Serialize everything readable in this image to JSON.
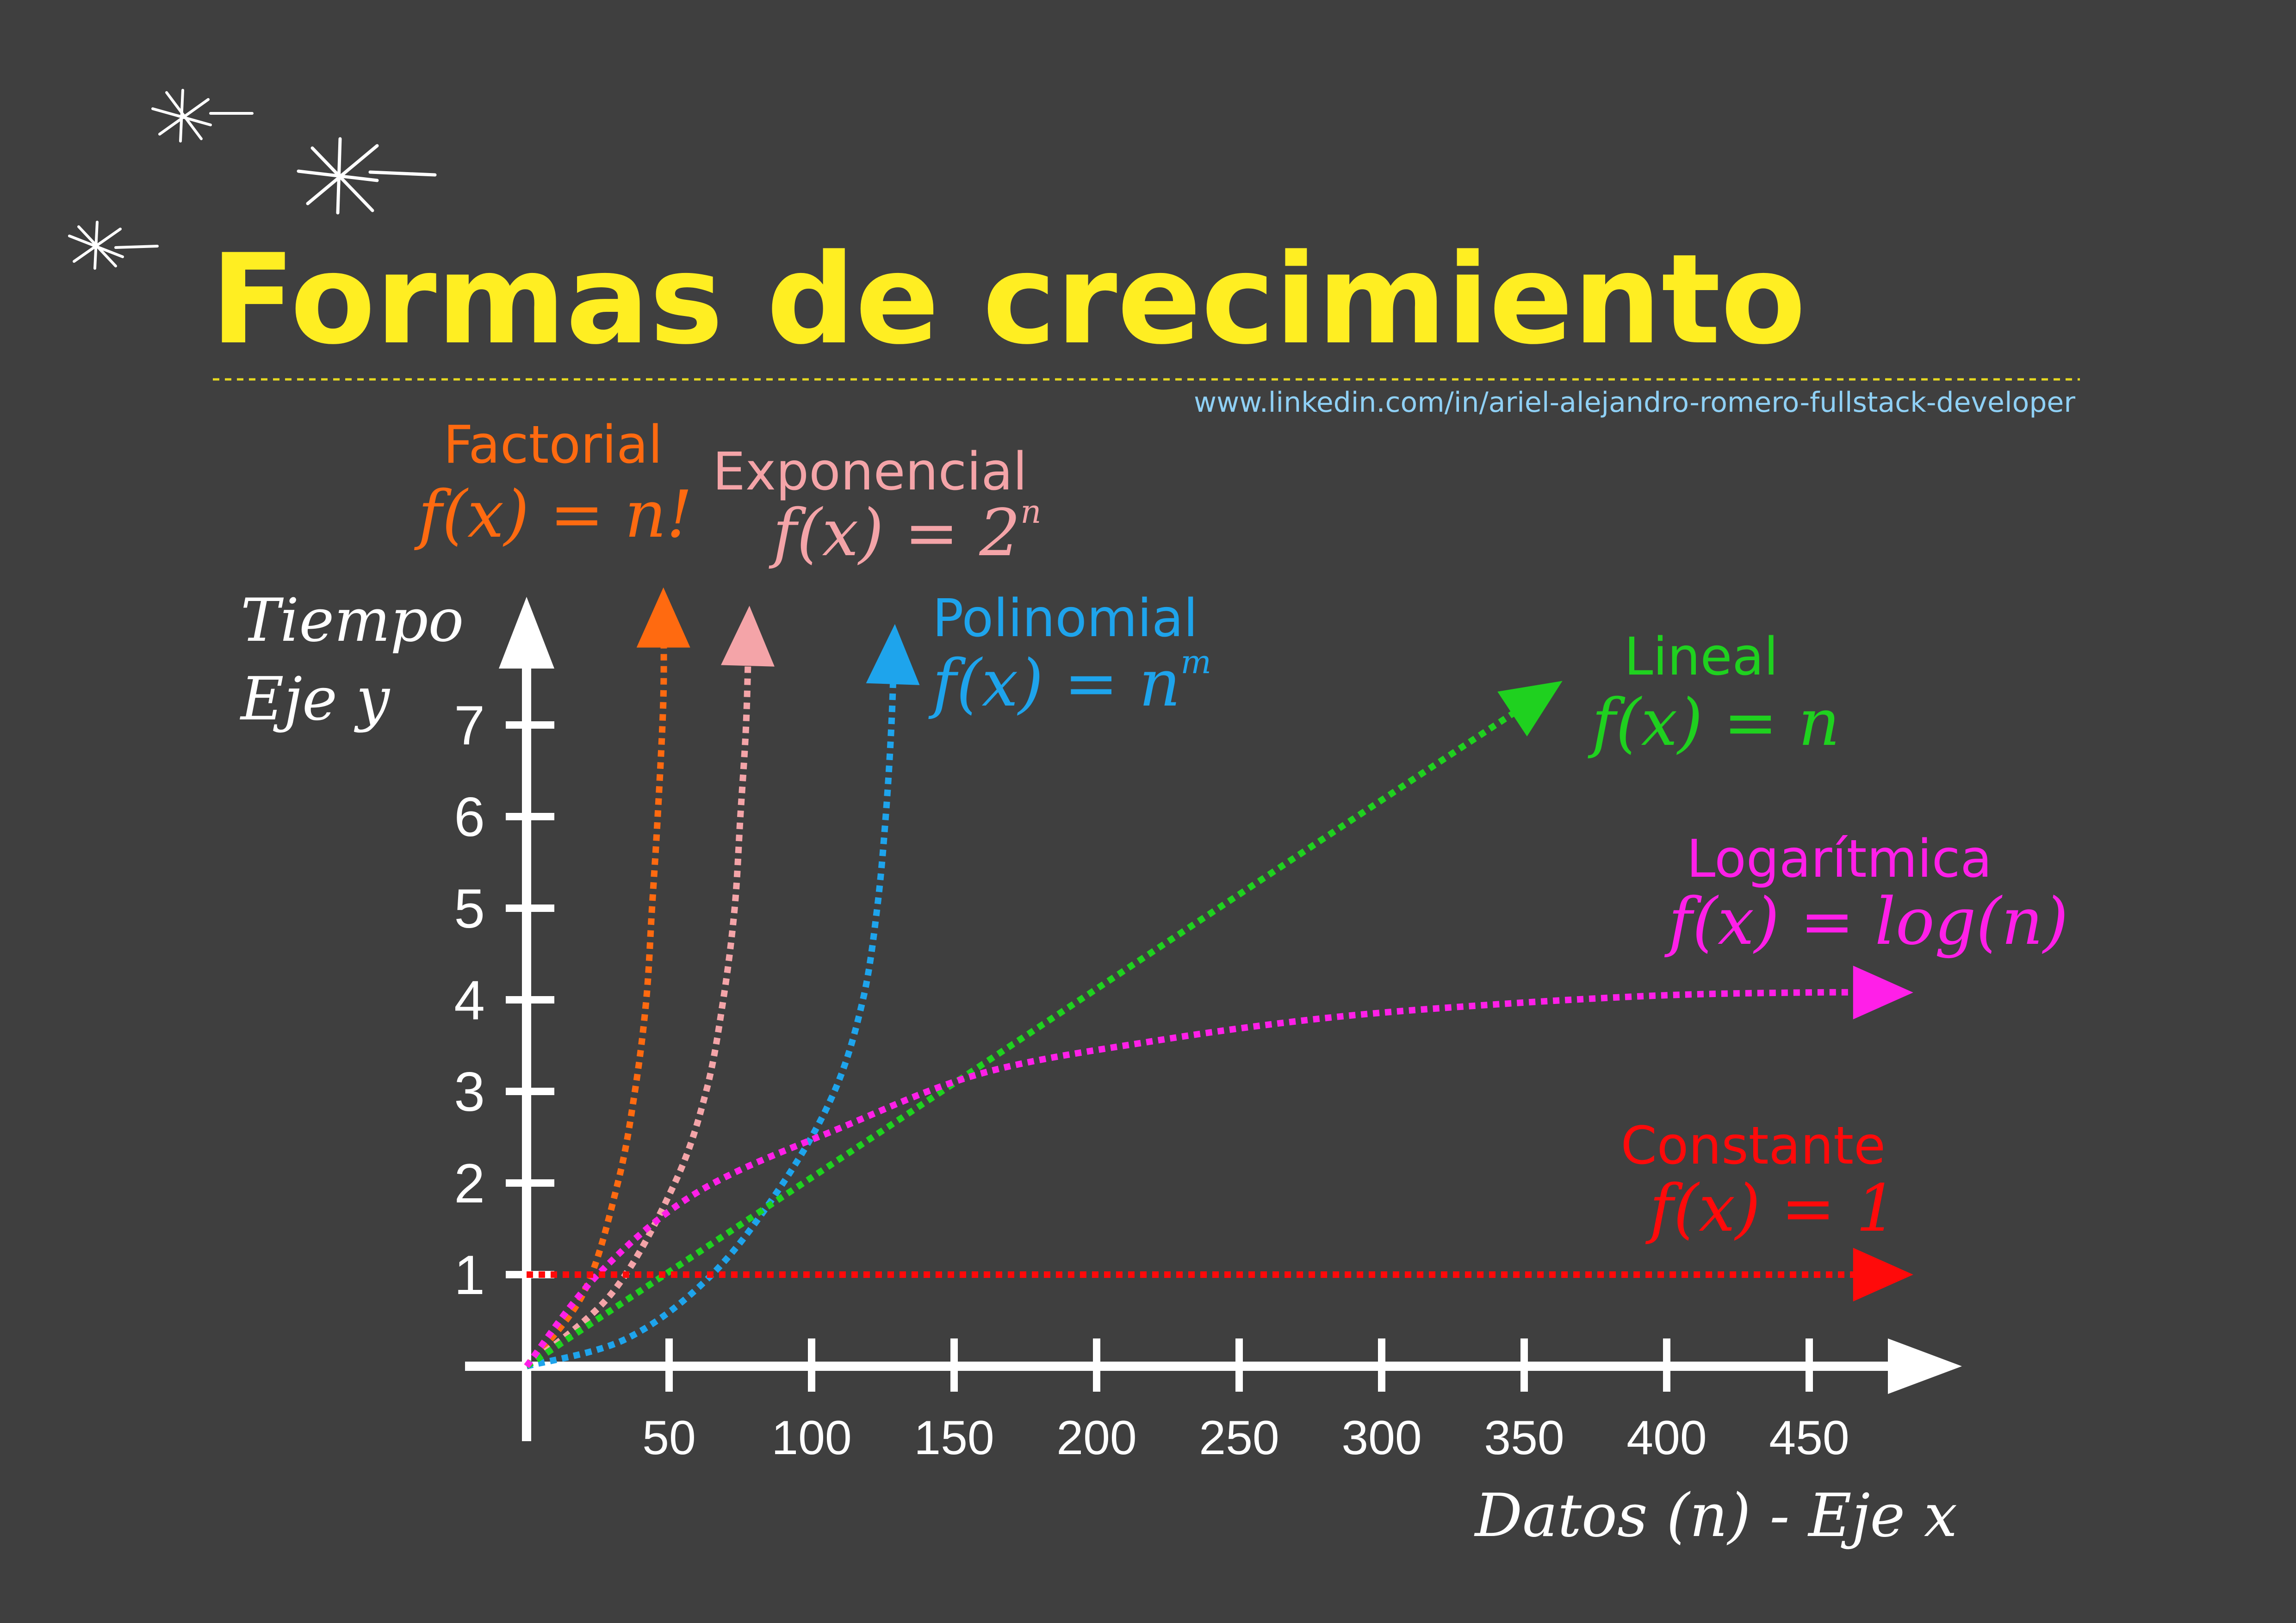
{
  "title": "Formas de crecimiento",
  "subtitle_link": "www.linkedin.com/in/ariel-alejandro-romero-fullstack-developer",
  "colors": {
    "background": "#3f3f3f",
    "title": "#ffee22",
    "link": "#8fd0f5",
    "axis": "#ffffff"
  },
  "chart_data": {
    "type": "line",
    "title": "Formas de crecimiento",
    "xlabel": "Datos (n) - Eje x",
    "ylabel_line1": "Tiempo",
    "ylabel_line2": "Eje y",
    "xlim": [
      0,
      500
    ],
    "ylim": [
      0,
      8
    ],
    "x_ticks": [
      50,
      100,
      150,
      200,
      250,
      300,
      350,
      400,
      450
    ],
    "y_ticks": [
      1,
      2,
      3,
      4,
      5,
      6,
      7
    ],
    "grid": false,
    "series": [
      {
        "name": "Factorial",
        "formula": "f(x) = n!",
        "color": "#ff6a10",
        "points": [
          [
            0,
            0
          ],
          [
            20,
            0.8
          ],
          [
            32,
            2
          ],
          [
            38,
            3
          ],
          [
            42,
            4
          ],
          [
            44,
            5
          ],
          [
            46,
            6
          ],
          [
            48,
            7.3
          ],
          [
            48,
            8.3
          ]
        ]
      },
      {
        "name": "Exponencial",
        "formula": "f(x) = 2",
        "formula_sup": "n",
        "color": "#f4a4a8",
        "points": [
          [
            0,
            0
          ],
          [
            30,
            0.8
          ],
          [
            52,
            2
          ],
          [
            63,
            3
          ],
          [
            69,
            4
          ],
          [
            73,
            5
          ],
          [
            75,
            6
          ],
          [
            77,
            7
          ],
          [
            78,
            8.1
          ]
        ]
      },
      {
        "name": "Polinomial",
        "formula": "f(x) = n",
        "formula_sup": "m",
        "color": "#1ea4ec",
        "points": [
          [
            0,
            0
          ],
          [
            35,
            0.3
          ],
          [
            65,
            1
          ],
          [
            90,
            2
          ],
          [
            108,
            3
          ],
          [
            118,
            4
          ],
          [
            123,
            5
          ],
          [
            126,
            6
          ],
          [
            128,
            7
          ],
          [
            129,
            7.9
          ]
        ]
      },
      {
        "name": "Lineal",
        "formula": "f(x) = n",
        "color": "#1fd11f",
        "points": [
          [
            0,
            0
          ],
          [
            100,
            2.06
          ],
          [
            200,
            4.12
          ],
          [
            300,
            6.18
          ],
          [
            358,
            7.37
          ]
        ]
      },
      {
        "name": "Logarítmica",
        "formula": "f(x) = log(n)",
        "color": "#ff1fe8",
        "points": [
          [
            0,
            0
          ],
          [
            25,
            1
          ],
          [
            60,
            1.9
          ],
          [
            110,
            2.6
          ],
          [
            160,
            3.2
          ],
          [
            220,
            3.55
          ],
          [
            280,
            3.8
          ],
          [
            340,
            3.95
          ],
          [
            400,
            4.05
          ],
          [
            450,
            4.08
          ],
          [
            480,
            4.08
          ]
        ]
      },
      {
        "name": "Constante",
        "formula": "f(x) = 1",
        "color": "#ff0a0a",
        "points": [
          [
            0,
            1
          ],
          [
            480,
            1
          ]
        ]
      }
    ]
  }
}
